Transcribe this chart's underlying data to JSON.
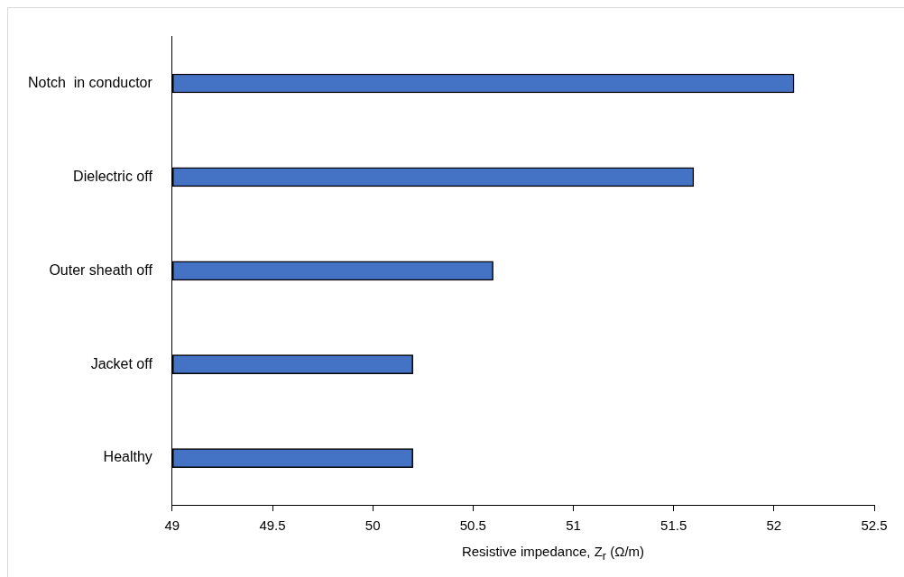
{
  "chart_data": {
    "type": "bar",
    "orientation": "horizontal",
    "xlabel": "Resistive impedance, Z$_{r}$ (Ω/m)",
    "categories": [
      "Notch  in conductor",
      "Dielectric off",
      "Outer sheath off",
      "Jacket off",
      "Healthy"
    ],
    "values": [
      52.1,
      51.6,
      50.6,
      50.2,
      50.2
    ],
    "color": "#4472c4",
    "xlim": [
      49,
      52.5
    ],
    "xticks": [
      49,
      49.5,
      50,
      50.5,
      51,
      51.5,
      52,
      52.5
    ],
    "grid": false,
    "legend": false
  }
}
